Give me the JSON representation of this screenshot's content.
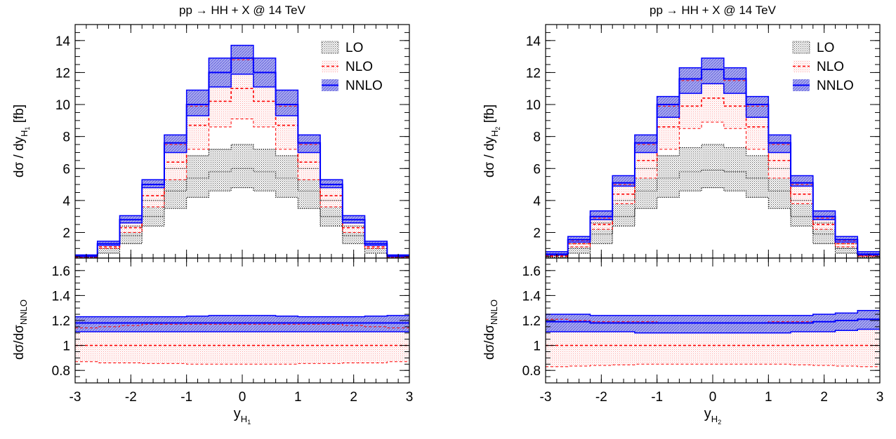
{
  "colors": {
    "lo": "#000000",
    "nlo": "#ff0000",
    "nnlo": "#0000ff",
    "nnlo_fill": "#8080e8",
    "nlo_fill": "#ffd6d6",
    "lo_fill": "#c8c8c8"
  },
  "chart_data": [
    {
      "type": "histogram",
      "title": "pp → HH + X @ 14 TeV",
      "xlabel": "y",
      "xlabel_sub": "H",
      "xlabel_subsub": "1",
      "ylabel_top": "dσ / dy",
      "ylabel_top_sub": "H",
      "ylabel_top_subsub": "1",
      "ylabel_top_unit": "[fb]",
      "ylabel_ratio": "dσ/dσ",
      "ylabel_ratio_sub": "NNLO",
      "legend": [
        "LO",
        "NLO",
        "NNLO"
      ],
      "legend_position": "top-right",
      "xlim": [
        -3,
        3
      ],
      "ylim_top": [
        0.4,
        15
      ],
      "ylim_ratio": [
        0.7,
        1.7
      ],
      "xticks": [
        "-3",
        "-2",
        "-1",
        "0",
        "1",
        "2",
        "3"
      ],
      "yticks_top": [
        "2",
        "4",
        "6",
        "8",
        "10",
        "12",
        "14"
      ],
      "yticks_ratio": [
        "0.8",
        "1",
        "1.2",
        "1.4",
        "1.6"
      ],
      "bin_edges": [
        -3,
        -2.6,
        -2.2,
        -1.8,
        -1.4,
        -1,
        -0.6,
        -0.2,
        0.2,
        0.6,
        1,
        1.4,
        1.8,
        2.2,
        2.6,
        3
      ],
      "series": [
        {
          "name": "LO",
          "low": [
            0.3,
            0.7,
            1.3,
            2.4,
            3.5,
            4.2,
            4.6,
            4.8,
            4.6,
            4.2,
            3.5,
            2.4,
            1.3,
            0.7,
            0.3
          ],
          "central": [
            0.35,
            1.0,
            1.8,
            3.0,
            4.6,
            5.4,
            5.8,
            6.0,
            5.8,
            5.4,
            4.6,
            3.0,
            1.8,
            1.0,
            0.35
          ],
          "high": [
            0.45,
            1.3,
            2.4,
            4.0,
            6.0,
            6.8,
            7.2,
            7.5,
            7.2,
            6.8,
            6.0,
            4.0,
            2.4,
            1.3,
            0.45
          ]
        },
        {
          "name": "NLO",
          "low": [
            0.4,
            1.0,
            2.0,
            3.6,
            5.3,
            7.2,
            8.6,
            9.1,
            8.6,
            7.2,
            5.3,
            3.6,
            2.0,
            1.0,
            0.4
          ],
          "central": [
            0.45,
            1.1,
            2.3,
            4.3,
            6.4,
            8.7,
            10.2,
            11.0,
            10.2,
            8.7,
            6.4,
            4.3,
            2.3,
            1.1,
            0.45
          ],
          "high": [
            0.5,
            1.3,
            2.6,
            4.8,
            7.5,
            9.9,
            12.0,
            12.8,
            12.0,
            9.9,
            7.5,
            4.8,
            2.6,
            1.3,
            0.5
          ]
        },
        {
          "name": "NNLO",
          "low": [
            0.5,
            1.2,
            2.6,
            4.8,
            7.0,
            9.3,
            11.1,
            11.9,
            11.1,
            9.3,
            7.0,
            4.8,
            2.6,
            1.2,
            0.5
          ],
          "central": [
            0.55,
            1.3,
            2.8,
            5.0,
            7.6,
            10.0,
            12.0,
            12.9,
            12.0,
            10.0,
            7.6,
            5.0,
            2.8,
            1.3,
            0.55
          ],
          "high": [
            0.6,
            1.45,
            3.05,
            5.3,
            8.1,
            10.9,
            12.9,
            13.7,
            12.9,
            10.9,
            8.1,
            5.3,
            3.05,
            1.45,
            0.6
          ]
        }
      ],
      "ratio_series": [
        {
          "name": "NLO",
          "low": [
            0.87,
            0.86,
            0.86,
            0.855,
            0.855,
            0.85,
            0.85,
            0.85,
            0.85,
            0.85,
            0.855,
            0.855,
            0.86,
            0.86,
            0.87
          ],
          "central": [
            1,
            1,
            1,
            1,
            1,
            1,
            1,
            1,
            1,
            1,
            1,
            1,
            1,
            1,
            1
          ],
          "high": [
            1.14,
            1.15,
            1.16,
            1.17,
            1.17,
            1.17,
            1.17,
            1.17,
            1.17,
            1.17,
            1.17,
            1.17,
            1.16,
            1.15,
            1.14
          ]
        },
        {
          "name": "NNLO",
          "low": [
            1.11,
            1.11,
            1.11,
            1.11,
            1.11,
            1.11,
            1.11,
            1.11,
            1.11,
            1.11,
            1.11,
            1.11,
            1.11,
            1.11,
            1.11
          ],
          "central": [
            1.18,
            1.18,
            1.18,
            1.18,
            1.18,
            1.18,
            1.18,
            1.18,
            1.18,
            1.18,
            1.18,
            1.18,
            1.18,
            1.18,
            1.18
          ],
          "high": [
            1.23,
            1.23,
            1.23,
            1.23,
            1.23,
            1.235,
            1.24,
            1.24,
            1.24,
            1.235,
            1.23,
            1.23,
            1.23,
            1.235,
            1.24
          ]
        }
      ]
    },
    {
      "type": "histogram",
      "title": "pp → HH + X @ 14 TeV",
      "xlabel": "y",
      "xlabel_sub": "H",
      "xlabel_subsub": "2",
      "ylabel_top": "dσ / dy",
      "ylabel_top_sub": "H",
      "ylabel_top_subsub": "2",
      "ylabel_top_unit": "[fb]",
      "ylabel_ratio": "dσ/dσ",
      "ylabel_ratio_sub": "NNLO",
      "legend": [
        "LO",
        "NLO",
        "NNLO"
      ],
      "legend_position": "top-right",
      "xlim": [
        -3,
        3
      ],
      "ylim_top": [
        0.4,
        15
      ],
      "ylim_ratio": [
        0.7,
        1.7
      ],
      "xticks": [
        "-3",
        "-2",
        "-1",
        "0",
        "1",
        "2",
        "3"
      ],
      "yticks_top": [
        "2",
        "4",
        "6",
        "8",
        "10",
        "12",
        "14"
      ],
      "yticks_ratio": [
        "0.8",
        "1",
        "1.2",
        "1.4",
        "1.6"
      ],
      "bin_edges": [
        -3,
        -2.6,
        -2.2,
        -1.8,
        -1.4,
        -1,
        -0.6,
        -0.2,
        0.2,
        0.6,
        1,
        1.4,
        1.8,
        2.2,
        2.6,
        3
      ],
      "series": [
        {
          "name": "LO",
          "low": [
            0.3,
            0.7,
            1.3,
            2.4,
            3.5,
            4.2,
            4.6,
            4.8,
            4.6,
            4.2,
            3.5,
            2.4,
            1.3,
            0.7,
            0.3
          ],
          "central": [
            0.45,
            1.0,
            1.9,
            3.0,
            4.6,
            5.4,
            5.8,
            5.9,
            5.8,
            5.4,
            4.6,
            3.0,
            1.9,
            1.0,
            0.45
          ],
          "high": [
            0.55,
            1.3,
            2.6,
            4.0,
            6.0,
            6.8,
            7.3,
            7.5,
            7.3,
            6.8,
            6.0,
            4.0,
            2.6,
            1.3,
            0.55
          ]
        },
        {
          "name": "NLO",
          "low": [
            0.5,
            1.1,
            2.2,
            3.8,
            5.4,
            7.2,
            8.5,
            8.9,
            8.5,
            7.2,
            5.4,
            3.8,
            2.2,
            1.1,
            0.5
          ],
          "central": [
            0.55,
            1.3,
            2.5,
            4.4,
            6.5,
            8.6,
            9.9,
            10.4,
            9.9,
            8.6,
            6.5,
            4.4,
            2.5,
            1.3,
            0.55
          ],
          "high": [
            0.65,
            1.5,
            2.9,
            5.0,
            7.5,
            9.9,
            11.5,
            12.2,
            11.5,
            9.9,
            7.5,
            5.0,
            2.9,
            1.5,
            0.65
          ]
        },
        {
          "name": "NNLO",
          "low": [
            0.6,
            1.4,
            2.8,
            4.9,
            7.0,
            9.2,
            10.7,
            11.3,
            10.7,
            9.2,
            7.0,
            4.9,
            2.8,
            1.4,
            0.6
          ],
          "central": [
            0.65,
            1.55,
            3.0,
            5.1,
            7.6,
            10.0,
            11.6,
            12.2,
            11.6,
            10.0,
            7.6,
            5.1,
            3.0,
            1.55,
            0.65
          ],
          "high": [
            0.8,
            1.75,
            3.35,
            5.55,
            8.1,
            10.5,
            12.3,
            12.9,
            12.3,
            10.5,
            8.1,
            5.55,
            3.35,
            1.75,
            0.8
          ]
        }
      ],
      "ratio_series": [
        {
          "name": "NLO",
          "low": [
            0.83,
            0.835,
            0.84,
            0.845,
            0.85,
            0.85,
            0.85,
            0.85,
            0.85,
            0.85,
            0.85,
            0.845,
            0.84,
            0.835,
            0.83
          ],
          "central": [
            1,
            1,
            1,
            1,
            1,
            1,
            1,
            1,
            1,
            1,
            1,
            1,
            1,
            1,
            1
          ],
          "high": [
            1.21,
            1.2,
            1.19,
            1.19,
            1.19,
            1.18,
            1.18,
            1.18,
            1.18,
            1.18,
            1.19,
            1.19,
            1.19,
            1.2,
            1.21
          ]
        },
        {
          "name": "NNLO",
          "low": [
            1.11,
            1.11,
            1.11,
            1.11,
            1.1,
            1.1,
            1.1,
            1.1,
            1.1,
            1.1,
            1.1,
            1.11,
            1.11,
            1.12,
            1.13
          ],
          "central": [
            1.19,
            1.19,
            1.18,
            1.18,
            1.18,
            1.18,
            1.18,
            1.18,
            1.18,
            1.18,
            1.18,
            1.18,
            1.19,
            1.2,
            1.21
          ],
          "high": [
            1.25,
            1.25,
            1.24,
            1.24,
            1.24,
            1.24,
            1.24,
            1.24,
            1.24,
            1.24,
            1.24,
            1.24,
            1.25,
            1.26,
            1.28
          ]
        }
      ]
    }
  ]
}
